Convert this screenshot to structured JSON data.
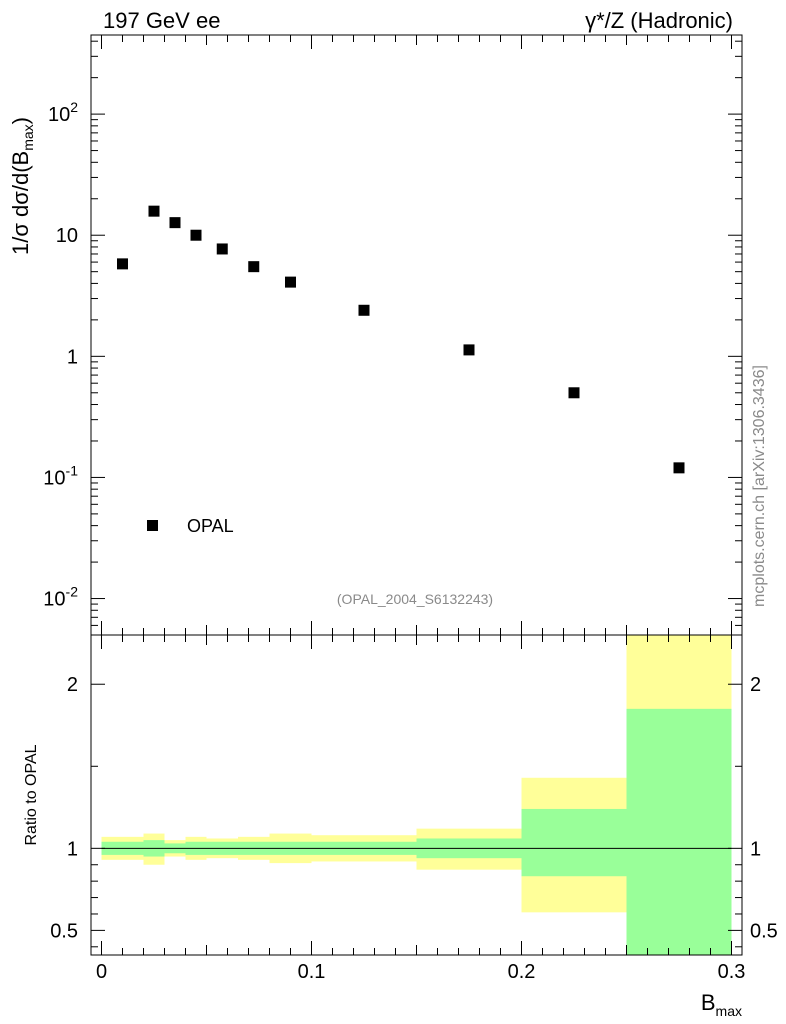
{
  "header": {
    "left": "197 GeV ee",
    "right": "γ*/Z (Hadronic)"
  },
  "watermark": "mcplots.cern.ch [arXiv:1306.3436]",
  "analysis_tag": "(OPAL_2004_S6132243)",
  "legend": {
    "entry": "OPAL"
  },
  "colors": {
    "data_marker": "#000000",
    "band_inner": "#99ff99",
    "band_outer": "#ffff99",
    "ratio_line": "#000000"
  },
  "chart_data": [
    {
      "type": "scatter",
      "panel": "main",
      "title": "",
      "ylabel": "1/σ dσ/d(B_max)",
      "yscale": "log",
      "ylim": [
        0.005,
        450
      ],
      "xlim": [
        -0.005,
        0.305
      ],
      "y_tick_labels": [
        "10^-2",
        "10^-1",
        "1",
        "10",
        "10^2"
      ],
      "legend_placement": "bottom-left",
      "series": [
        {
          "name": "OPAL",
          "x": [
            0.01,
            0.025,
            0.035,
            0.045,
            0.0575,
            0.0725,
            0.09,
            0.125,
            0.175,
            0.225,
            0.275
          ],
          "y": [
            5.8,
            15.8,
            12.7,
            10.0,
            7.7,
            5.5,
            4.1,
            2.4,
            1.13,
            0.5,
            0.12
          ]
        }
      ]
    },
    {
      "type": "area",
      "panel": "ratio",
      "ylabel": "Ratio to OPAL",
      "xlabel": "B_max",
      "ylim": [
        0.35,
        2.3
      ],
      "xlim": [
        -0.005,
        0.305
      ],
      "x_tick_labels": [
        "0",
        "0.1",
        "0.2",
        "0.3"
      ],
      "y_tick_labels": [
        "0.5",
        "1",
        "2"
      ],
      "reference_line": 1.0,
      "bins": [
        {
          "x0": 0.0,
          "x1": 0.02,
          "inner": [
            0.96,
            1.04
          ],
          "outer": [
            0.93,
            1.07
          ]
        },
        {
          "x0": 0.02,
          "x1": 0.03,
          "inner": [
            0.95,
            1.05
          ],
          "outer": [
            0.9,
            1.09
          ]
        },
        {
          "x0": 0.03,
          "x1": 0.04,
          "inner": [
            0.97,
            1.03
          ],
          "outer": [
            0.95,
            1.05
          ]
        },
        {
          "x0": 0.04,
          "x1": 0.05,
          "inner": [
            0.96,
            1.04
          ],
          "outer": [
            0.93,
            1.07
          ]
        },
        {
          "x0": 0.05,
          "x1": 0.065,
          "inner": [
            0.96,
            1.04
          ],
          "outer": [
            0.94,
            1.06
          ]
        },
        {
          "x0": 0.065,
          "x1": 0.08,
          "inner": [
            0.96,
            1.04
          ],
          "outer": [
            0.93,
            1.07
          ]
        },
        {
          "x0": 0.08,
          "x1": 0.1,
          "inner": [
            0.96,
            1.04
          ],
          "outer": [
            0.91,
            1.09
          ]
        },
        {
          "x0": 0.1,
          "x1": 0.15,
          "inner": [
            0.96,
            1.04
          ],
          "outer": [
            0.92,
            1.08
          ]
        },
        {
          "x0": 0.15,
          "x1": 0.2,
          "inner": [
            0.94,
            1.06
          ],
          "outer": [
            0.87,
            1.12
          ]
        },
        {
          "x0": 0.2,
          "x1": 0.25,
          "inner": [
            0.83,
            1.24
          ],
          "outer": [
            0.61,
            1.43
          ]
        },
        {
          "x0": 0.25,
          "x1": 0.3,
          "inner": [
            0.3,
            1.85
          ],
          "outer": [
            0.3,
            2.4
          ]
        }
      ]
    }
  ]
}
